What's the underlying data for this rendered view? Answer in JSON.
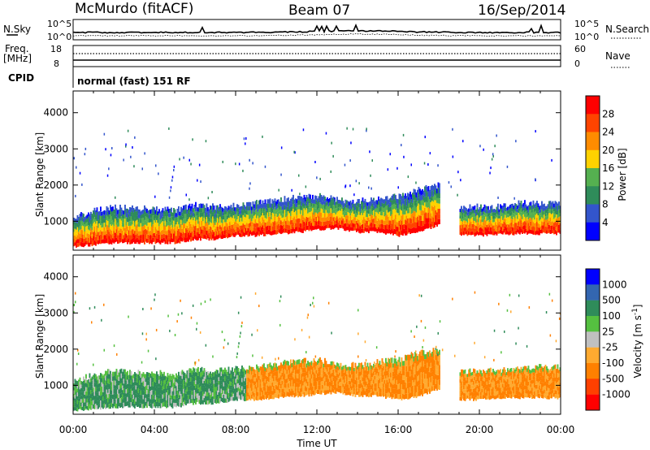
{
  "header": {
    "station": "McMurdo (fitACF)",
    "beam": "Beam 07",
    "date": "16/Sep/2014"
  },
  "sky_panel": {
    "left_label": "N.Sky",
    "left_ticks": [
      "10^5",
      "10^0"
    ],
    "right_label": "N.Search",
    "right_ticks": [
      "10^5",
      "10^0"
    ]
  },
  "freq_panel": {
    "left_label_1": "Freq.",
    "left_label_2": "[MHz]",
    "left_ticks": [
      "18",
      "8"
    ],
    "right_label": "Nave",
    "right_ticks": [
      "60",
      "0"
    ]
  },
  "cpid": {
    "label": "CPID",
    "value": "normal (fast) 151 RF"
  },
  "colors": {
    "power": [
      "#0000ff",
      "#3355cc",
      "#2f8c5a",
      "#55b050",
      "#ffd200",
      "#ff8c00",
      "#ff4400",
      "#ff0000"
    ],
    "velocity": [
      "#0000ff",
      "#3366b0",
      "#2f8c5a",
      "#55c040",
      "#c0c0c0",
      "#ffaa30",
      "#ff8000",
      "#ff4000",
      "#ff0000"
    ]
  },
  "chart_data": [
    {
      "type": "heatmap",
      "name": "power",
      "xlabel": "",
      "ylabel": "Slant Range [km]",
      "xlim": [
        0,
        24
      ],
      "ylim": [
        200,
        4600
      ],
      "yticks": [
        "1000",
        "2000",
        "3000",
        "4000"
      ],
      "colorbar": {
        "label": "Power [dB]",
        "ticks": [
          "4",
          "8",
          "12",
          "16",
          "20",
          "24",
          "28"
        ],
        "range": [
          0,
          32
        ]
      },
      "band": {
        "hours": [
          0,
          1,
          2,
          3,
          4,
          5,
          6,
          7,
          8,
          9,
          10,
          11,
          12,
          13,
          14,
          15,
          16,
          17,
          18,
          18.5,
          19,
          20,
          21,
          22,
          23,
          24
        ],
        "top_km": [
          1100,
          1300,
          1400,
          1350,
          1350,
          1300,
          1450,
          1400,
          1450,
          1500,
          1600,
          1650,
          1700,
          1600,
          1550,
          1650,
          1700,
          1900,
          2000,
          0,
          1400,
          1400,
          1400,
          1500,
          1500,
          1500
        ],
        "bottom_km": [
          300,
          350,
          400,
          400,
          400,
          400,
          500,
          500,
          600,
          600,
          650,
          700,
          750,
          800,
          700,
          700,
          600,
          700,
          900,
          0,
          600,
          600,
          650,
          650,
          650,
          650
        ]
      }
    },
    {
      "type": "heatmap",
      "name": "velocity",
      "xlabel": "Time UT",
      "ylabel": "Slant Range [km]",
      "xlim": [
        0,
        24
      ],
      "ylim": [
        200,
        4600
      ],
      "yticks": [
        "1000",
        "2000",
        "3000",
        "4000"
      ],
      "xticks": [
        "00:00",
        "04:00",
        "08:00",
        "12:00",
        "16:00",
        "20:00",
        "00:00"
      ],
      "colorbar": {
        "label": "Velocity [m s^-1]",
        "ticks": [
          "1000",
          "500",
          "100",
          "25",
          "-25",
          "-100",
          "-500",
          "-1000"
        ]
      }
    }
  ]
}
